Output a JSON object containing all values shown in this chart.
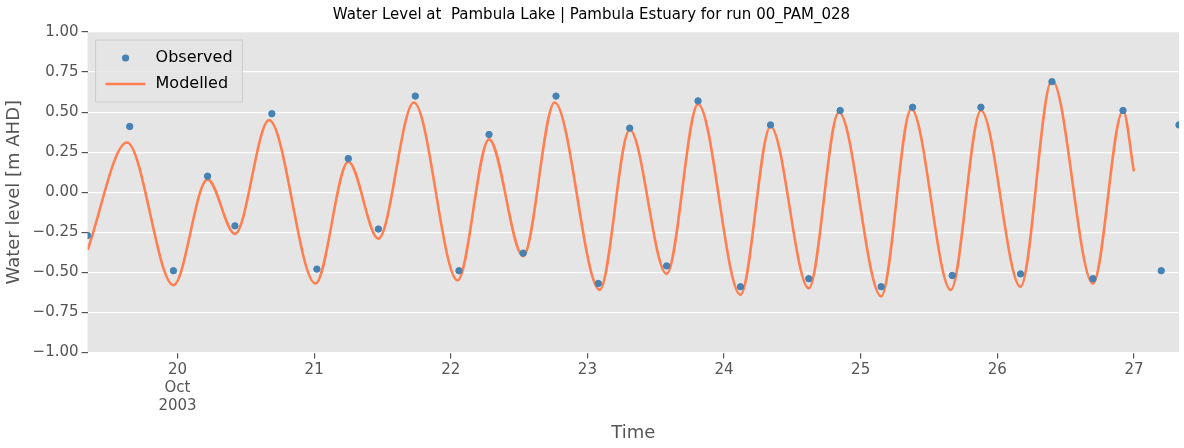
{
  "chart_data": {
    "type": "line",
    "title": "Water Level at  Pambula Lake | Pambula Estuary for run 00_PAM_028",
    "xlabel": "Time",
    "ylabel": "Water level [m AHD]",
    "xlim": [
      "2003-10-19T08:12",
      "2003-10-27T07:55"
    ],
    "xticks": [
      {
        "value": "2003-10-20",
        "label": "20\nOct\n2003"
      },
      {
        "value": "2003-10-21",
        "label": "21"
      },
      {
        "value": "2003-10-22",
        "label": "22"
      },
      {
        "value": "2003-10-23",
        "label": "23"
      },
      {
        "value": "2003-10-24",
        "label": "24"
      },
      {
        "value": "2003-10-25",
        "label": "25"
      },
      {
        "value": "2003-10-26",
        "label": "26"
      },
      {
        "value": "2003-10-27",
        "label": "27"
      }
    ],
    "ylim": [
      -1,
      1
    ],
    "yticks": [
      {
        "value": -1,
        "label": "−1.00"
      },
      {
        "value": -0.75,
        "label": "−0.75"
      },
      {
        "value": -0.5,
        "label": "−0.50"
      },
      {
        "value": -0.25,
        "label": "−0.25"
      },
      {
        "value": 0,
        "label": "0.00"
      },
      {
        "value": 0.25,
        "label": "0.25"
      },
      {
        "value": 0.5,
        "label": "0.50"
      },
      {
        "value": 0.75,
        "label": "0.75"
      },
      {
        "value": 1,
        "label": "1.00"
      }
    ],
    "grid": "y",
    "legend": "top left",
    "series": [
      {
        "name": "Observed",
        "type": "scatter",
        "marker": "circle",
        "color": "#4682b4",
        "x": [
          "2003-10-19T08:12",
          "2003-10-19T15:36",
          "2003-10-19T23:17",
          "2003-10-20T05:17",
          "2003-10-20T10:05",
          "2003-10-20T16:34",
          "2003-10-21T00:29",
          "2003-10-21T06:00",
          "2003-10-21T11:17",
          "2003-10-21T17:46",
          "2003-10-22T01:26",
          "2003-10-22T06:43",
          "2003-10-22T12:43",
          "2003-10-22T18:29",
          "2003-10-23T01:55",
          "2003-10-23T07:26",
          "2003-10-23T13:55",
          "2003-10-23T19:26",
          "2003-10-24T02:53",
          "2003-10-24T08:10",
          "2003-10-24T14:53",
          "2003-10-24T20:24",
          "2003-10-25T03:36",
          "2003-10-25T09:07",
          "2003-10-25T16:05",
          "2003-10-25T21:07",
          "2003-10-26T04:05",
          "2003-10-26T09:36",
          "2003-10-26T16:48",
          "2003-10-26T22:05",
          "2003-10-27T04:48",
          "2003-10-27T07:55"
        ],
        "values": [
          -0.27,
          0.41,
          -0.49,
          0.1,
          -0.21,
          0.49,
          -0.48,
          0.21,
          -0.23,
          0.6,
          -0.49,
          0.36,
          -0.38,
          0.6,
          -0.57,
          0.4,
          -0.46,
          0.57,
          -0.59,
          0.42,
          -0.54,
          0.51,
          -0.59,
          0.53,
          -0.52,
          0.53,
          -0.51,
          0.69,
          -0.54,
          0.51,
          -0.49,
          0.42
        ]
      },
      {
        "name": "Modelled",
        "type": "line",
        "marker": "none",
        "line_style": "solid",
        "color": "#ff7f50",
        "x": [
          "2003-10-19T08:12",
          "2003-10-19T15:07",
          "2003-10-19T23:17",
          "2003-10-20T05:17",
          "2003-10-20T10:05",
          "2003-10-20T16:05",
          "2003-10-21T00:14",
          "2003-10-21T06:00",
          "2003-10-21T11:17",
          "2003-10-21T17:31",
          "2003-10-22T01:12",
          "2003-10-22T06:43",
          "2003-10-22T12:43",
          "2003-10-22T18:14",
          "2003-10-23T02:10",
          "2003-10-23T07:26",
          "2003-10-23T13:55",
          "2003-10-23T19:26",
          "2003-10-24T02:53",
          "2003-10-24T08:10",
          "2003-10-24T14:53",
          "2003-10-24T20:10",
          "2003-10-25T03:36",
          "2003-10-25T08:53",
          "2003-10-25T15:50",
          "2003-10-25T21:07",
          "2003-10-26T04:05",
          "2003-10-26T09:36",
          "2003-10-26T16:48",
          "2003-10-26T22:05",
          "2003-10-27T00:00"
        ],
        "values": [
          -0.36,
          0.31,
          -0.58,
          0.08,
          -0.26,
          0.45,
          -0.57,
          0.19,
          -0.29,
          0.56,
          -0.55,
          0.33,
          -0.4,
          0.56,
          -0.61,
          0.39,
          -0.51,
          0.55,
          -0.64,
          0.41,
          -0.6,
          0.5,
          -0.65,
          0.52,
          -0.61,
          0.51,
          -0.59,
          0.7,
          -0.57,
          0.51,
          0.13
        ]
      }
    ]
  }
}
